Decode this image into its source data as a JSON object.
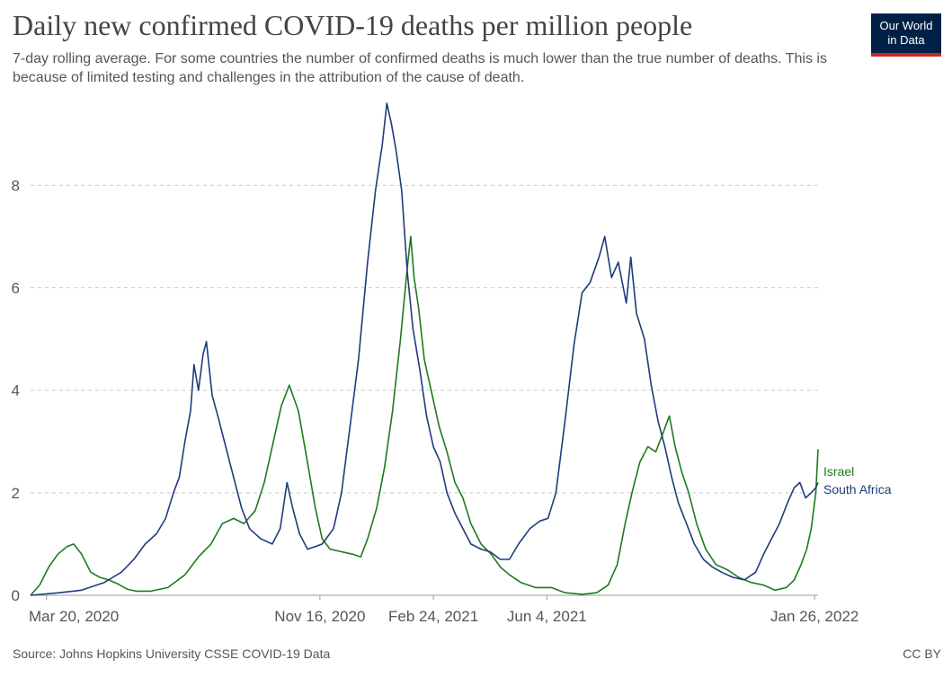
{
  "title": "Daily new confirmed COVID-19 deaths per million people",
  "subtitle": "7-day rolling average. For some countries the number of confirmed deaths is much lower than the true number of deaths. This is because of limited testing and challenges in the attribution of the cause of death.",
  "logo": {
    "line1": "Our World",
    "line2": "in Data",
    "bg_color": "#002147",
    "accent_color": "#ce261e"
  },
  "source": "Source: Johns Hopkins University CSSE COVID-19 Data",
  "license": "CC BY",
  "chart_data": {
    "type": "line",
    "title": "Daily new confirmed COVID-19 deaths per million people",
    "xlabel": "",
    "ylabel": "",
    "x_range": [
      "2020-03-06",
      "2022-01-29"
    ],
    "ylim": [
      0,
      9.6
    ],
    "y_ticks": [
      0,
      2,
      4,
      6,
      8
    ],
    "x_ticks": [
      {
        "date": "2020-03-20",
        "label": "Mar 20, 2020"
      },
      {
        "date": "2020-11-16",
        "label": "Nov 16, 2020"
      },
      {
        "date": "2021-02-24",
        "label": "Feb 24, 2021"
      },
      {
        "date": "2021-06-04",
        "label": "Jun 4, 2021"
      },
      {
        "date": "2022-01-26",
        "label": "Jan 26, 2022"
      }
    ],
    "grid": "horizontal-dashed",
    "legend": "right-end-labels",
    "series": [
      {
        "name": "Israel",
        "color": "#1e7a1e",
        "points": [
          [
            "2020-03-06",
            0
          ],
          [
            "2020-03-14",
            0.2
          ],
          [
            "2020-03-22",
            0.55
          ],
          [
            "2020-03-30",
            0.8
          ],
          [
            "2020-04-07",
            0.95
          ],
          [
            "2020-04-13",
            1.0
          ],
          [
            "2020-04-20",
            0.8
          ],
          [
            "2020-04-28",
            0.45
          ],
          [
            "2020-05-06",
            0.35
          ],
          [
            "2020-05-14",
            0.3
          ],
          [
            "2020-05-22",
            0.22
          ],
          [
            "2020-05-30",
            0.12
          ],
          [
            "2020-06-07",
            0.08
          ],
          [
            "2020-06-20",
            0.08
          ],
          [
            "2020-07-05",
            0.15
          ],
          [
            "2020-07-20",
            0.4
          ],
          [
            "2020-08-01",
            0.75
          ],
          [
            "2020-08-12",
            1.0
          ],
          [
            "2020-08-22",
            1.4
          ],
          [
            "2020-09-01",
            1.5
          ],
          [
            "2020-09-10",
            1.4
          ],
          [
            "2020-09-20",
            1.65
          ],
          [
            "2020-09-28",
            2.2
          ],
          [
            "2020-10-06",
            3.0
          ],
          [
            "2020-10-13",
            3.7
          ],
          [
            "2020-10-20",
            4.1
          ],
          [
            "2020-10-28",
            3.6
          ],
          [
            "2020-11-05",
            2.6
          ],
          [
            "2020-11-12",
            1.7
          ],
          [
            "2020-11-18",
            1.1
          ],
          [
            "2020-11-25",
            0.9
          ],
          [
            "2020-12-05",
            0.85
          ],
          [
            "2020-12-15",
            0.8
          ],
          [
            "2020-12-22",
            0.75
          ],
          [
            "2020-12-28",
            1.1
          ],
          [
            "2021-01-05",
            1.7
          ],
          [
            "2021-01-12",
            2.5
          ],
          [
            "2021-01-19",
            3.6
          ],
          [
            "2021-01-26",
            5.0
          ],
          [
            "2021-02-01",
            6.4
          ],
          [
            "2021-02-04",
            7.0
          ],
          [
            "2021-02-07",
            6.2
          ],
          [
            "2021-02-11",
            5.6
          ],
          [
            "2021-02-16",
            4.6
          ],
          [
            "2021-02-22",
            4.0
          ],
          [
            "2021-03-01",
            3.3
          ],
          [
            "2021-03-08",
            2.8
          ],
          [
            "2021-03-15",
            2.2
          ],
          [
            "2021-03-22",
            1.9
          ],
          [
            "2021-03-29",
            1.4
          ],
          [
            "2021-04-07",
            1.0
          ],
          [
            "2021-04-16",
            0.8
          ],
          [
            "2021-04-24",
            0.55
          ],
          [
            "2021-05-02",
            0.4
          ],
          [
            "2021-05-12",
            0.25
          ],
          [
            "2021-05-25",
            0.15
          ],
          [
            "2021-06-08",
            0.15
          ],
          [
            "2021-06-20",
            0.05
          ],
          [
            "2021-07-05",
            0.02
          ],
          [
            "2021-07-18",
            0.05
          ],
          [
            "2021-07-28",
            0.2
          ],
          [
            "2021-08-05",
            0.6
          ],
          [
            "2021-08-12",
            1.4
          ],
          [
            "2021-08-18",
            2.0
          ],
          [
            "2021-08-25",
            2.6
          ],
          [
            "2021-09-01",
            2.9
          ],
          [
            "2021-09-08",
            2.8
          ],
          [
            "2021-09-15",
            3.2
          ],
          [
            "2021-09-20",
            3.5
          ],
          [
            "2021-09-25",
            2.9
          ],
          [
            "2021-10-01",
            2.4
          ],
          [
            "2021-10-07",
            2.0
          ],
          [
            "2021-10-14",
            1.4
          ],
          [
            "2021-10-22",
            0.9
          ],
          [
            "2021-10-31",
            0.6
          ],
          [
            "2021-11-10",
            0.5
          ],
          [
            "2021-11-20",
            0.35
          ],
          [
            "2021-12-01",
            0.25
          ],
          [
            "2021-12-12",
            0.2
          ],
          [
            "2021-12-22",
            0.1
          ],
          [
            "2022-01-01",
            0.15
          ],
          [
            "2022-01-08",
            0.3
          ],
          [
            "2022-01-14",
            0.6
          ],
          [
            "2022-01-19",
            0.9
          ],
          [
            "2022-01-23",
            1.3
          ],
          [
            "2022-01-27",
            2.0
          ],
          [
            "2022-01-29",
            2.85
          ]
        ]
      },
      {
        "name": "South Africa",
        "color": "#1e3c7a",
        "points": [
          [
            "2020-03-06",
            0
          ],
          [
            "2020-04-01",
            0.05
          ],
          [
            "2020-04-20",
            0.1
          ],
          [
            "2020-05-10",
            0.25
          ],
          [
            "2020-05-25",
            0.45
          ],
          [
            "2020-06-05",
            0.7
          ],
          [
            "2020-06-15",
            1.0
          ],
          [
            "2020-06-25",
            1.2
          ],
          [
            "2020-07-03",
            1.5
          ],
          [
            "2020-07-10",
            2.0
          ],
          [
            "2020-07-15",
            2.3
          ],
          [
            "2020-07-20",
            3.0
          ],
          [
            "2020-07-25",
            3.6
          ],
          [
            "2020-07-28",
            4.5
          ],
          [
            "2020-08-01",
            4.0
          ],
          [
            "2020-08-05",
            4.7
          ],
          [
            "2020-08-08",
            4.95
          ],
          [
            "2020-08-13",
            3.9
          ],
          [
            "2020-08-18",
            3.5
          ],
          [
            "2020-08-25",
            2.9
          ],
          [
            "2020-09-01",
            2.3
          ],
          [
            "2020-09-08",
            1.7
          ],
          [
            "2020-09-15",
            1.3
          ],
          [
            "2020-09-25",
            1.1
          ],
          [
            "2020-10-05",
            1.0
          ],
          [
            "2020-10-12",
            1.3
          ],
          [
            "2020-10-18",
            2.2
          ],
          [
            "2020-10-23",
            1.7
          ],
          [
            "2020-10-29",
            1.2
          ],
          [
            "2020-11-05",
            0.9
          ],
          [
            "2020-11-12",
            0.95
          ],
          [
            "2020-11-18",
            1.0
          ],
          [
            "2020-11-28",
            1.3
          ],
          [
            "2020-12-05",
            2.0
          ],
          [
            "2020-12-12",
            3.2
          ],
          [
            "2020-12-20",
            4.6
          ],
          [
            "2020-12-28",
            6.5
          ],
          [
            "2021-01-04",
            7.9
          ],
          [
            "2021-01-10",
            8.8
          ],
          [
            "2021-01-14",
            9.6
          ],
          [
            "2021-01-18",
            9.2
          ],
          [
            "2021-01-22",
            8.7
          ],
          [
            "2021-01-27",
            7.9
          ],
          [
            "2021-02-01",
            6.3
          ],
          [
            "2021-02-06",
            5.2
          ],
          [
            "2021-02-12",
            4.4
          ],
          [
            "2021-02-18",
            3.5
          ],
          [
            "2021-02-24",
            2.9
          ],
          [
            "2021-03-02",
            2.6
          ],
          [
            "2021-03-08",
            2.0
          ],
          [
            "2021-03-15",
            1.6
          ],
          [
            "2021-03-22",
            1.3
          ],
          [
            "2021-03-29",
            1.0
          ],
          [
            "2021-04-07",
            0.9
          ],
          [
            "2021-04-15",
            0.85
          ],
          [
            "2021-04-24",
            0.7
          ],
          [
            "2021-05-02",
            0.7
          ],
          [
            "2021-05-10",
            1.0
          ],
          [
            "2021-05-20",
            1.3
          ],
          [
            "2021-05-29",
            1.45
          ],
          [
            "2021-06-05",
            1.5
          ],
          [
            "2021-06-12",
            2.0
          ],
          [
            "2021-06-20",
            3.4
          ],
          [
            "2021-06-28",
            4.9
          ],
          [
            "2021-07-05",
            5.9
          ],
          [
            "2021-07-12",
            6.1
          ],
          [
            "2021-07-20",
            6.6
          ],
          [
            "2021-07-25",
            7.0
          ],
          [
            "2021-07-31",
            6.2
          ],
          [
            "2021-08-06",
            6.5
          ],
          [
            "2021-08-13",
            5.7
          ],
          [
            "2021-08-17",
            6.6
          ],
          [
            "2021-08-22",
            5.5
          ],
          [
            "2021-08-29",
            5.0
          ],
          [
            "2021-09-04",
            4.1
          ],
          [
            "2021-09-10",
            3.4
          ],
          [
            "2021-09-16",
            2.9
          ],
          [
            "2021-09-22",
            2.3
          ],
          [
            "2021-09-28",
            1.8
          ],
          [
            "2021-10-05",
            1.4
          ],
          [
            "2021-10-12",
            1.0
          ],
          [
            "2021-10-20",
            0.7
          ],
          [
            "2021-10-28",
            0.55
          ],
          [
            "2021-11-05",
            0.45
          ],
          [
            "2021-11-15",
            0.35
          ],
          [
            "2021-11-25",
            0.3
          ],
          [
            "2021-12-05",
            0.45
          ],
          [
            "2021-12-12",
            0.8
          ],
          [
            "2021-12-19",
            1.1
          ],
          [
            "2021-12-26",
            1.4
          ],
          [
            "2022-01-02",
            1.8
          ],
          [
            "2022-01-08",
            2.1
          ],
          [
            "2022-01-13",
            2.2
          ],
          [
            "2022-01-18",
            1.9
          ],
          [
            "2022-01-23",
            2.0
          ],
          [
            "2022-01-27",
            2.1
          ],
          [
            "2022-01-29",
            2.2
          ]
        ]
      }
    ]
  }
}
